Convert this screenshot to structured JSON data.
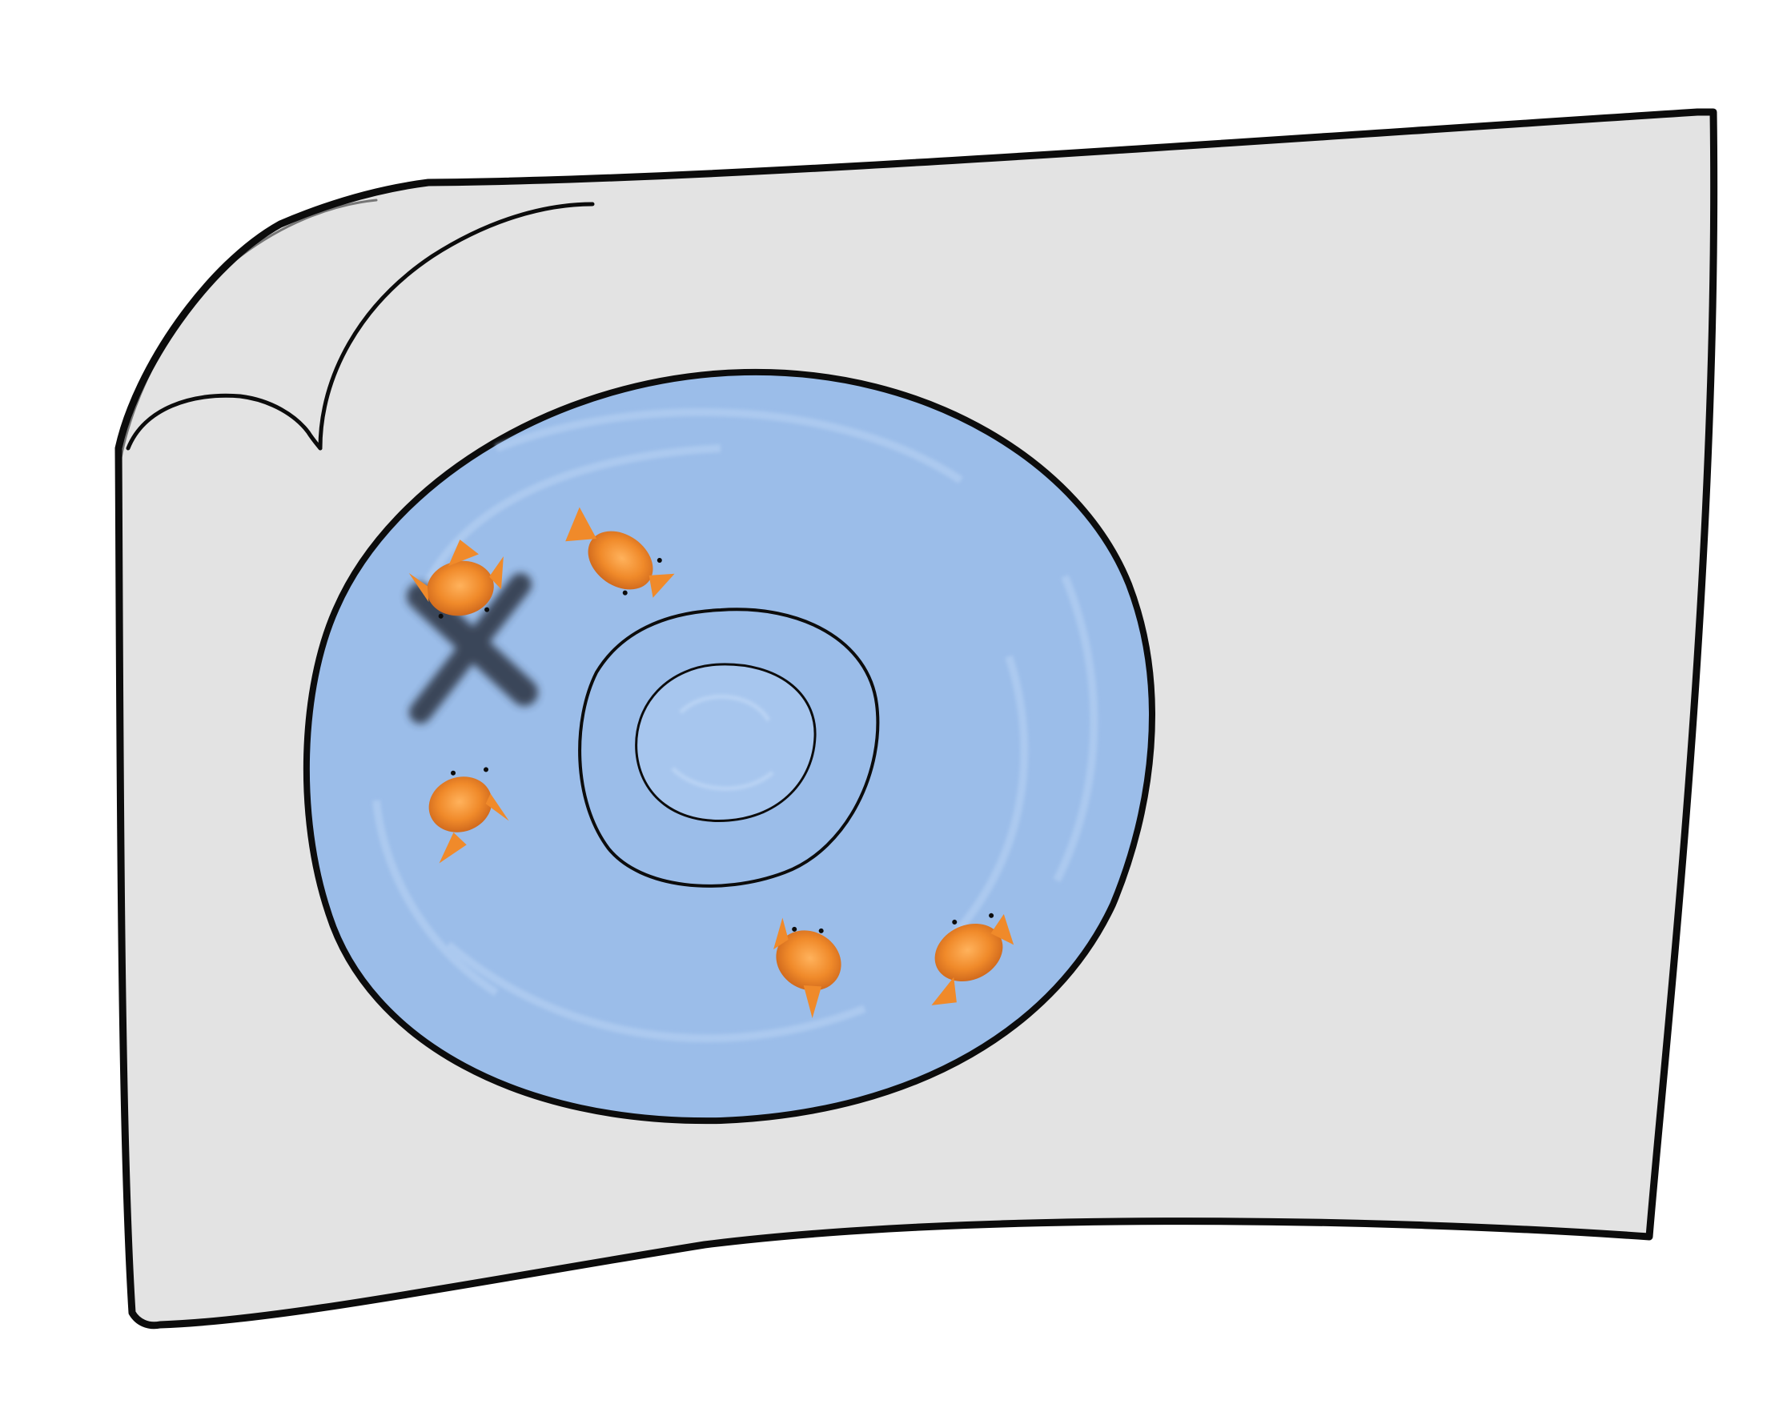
{
  "scene": {
    "description_labels": [],
    "colors": {
      "background": "#ffffff",
      "card_fill": "#e3e3e3",
      "outline": "#0c0c0c",
      "pond_fill": "#9bbde9",
      "pond_ripple": "#b3cff2",
      "fish_body": "#f08a2a",
      "fish_dark": "#c9621a",
      "cross_mark": "#2a3240"
    },
    "fish_count": 5,
    "cross_mark_count": 1,
    "ring_count": 2
  }
}
